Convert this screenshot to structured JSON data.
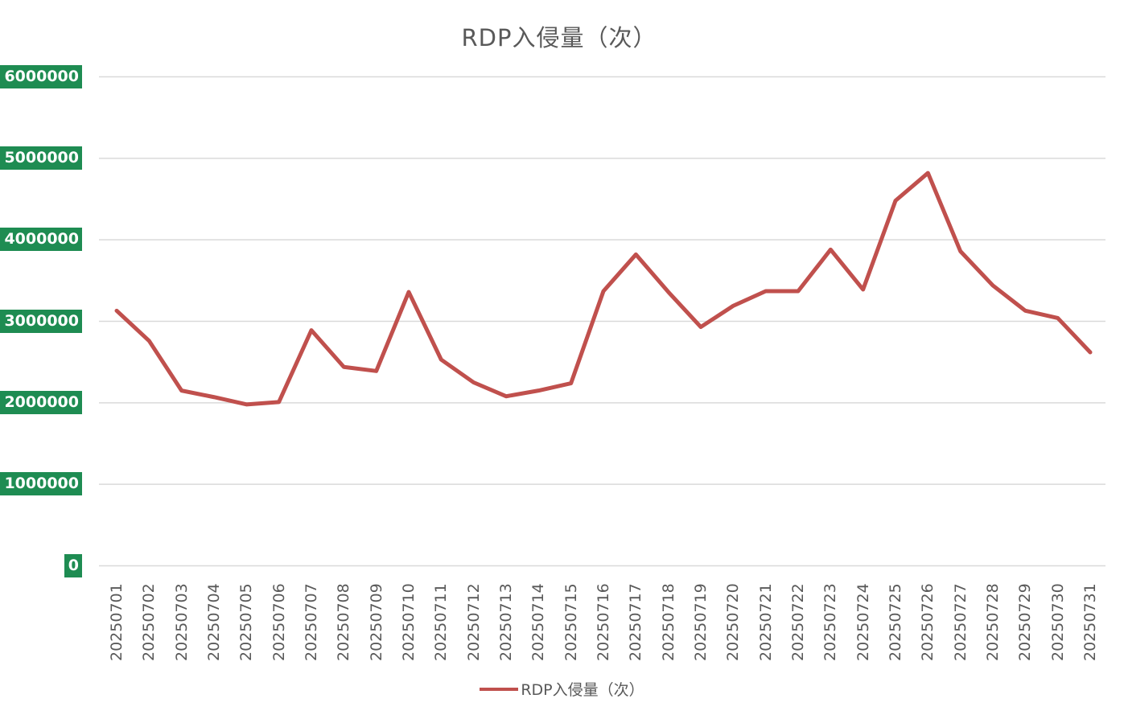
{
  "chart_data": {
    "type": "line",
    "title": "RDP入侵量（次）",
    "categories": [
      "20250701",
      "20250702",
      "20250703",
      "20250704",
      "20250705",
      "20250706",
      "20250707",
      "20250708",
      "20250709",
      "20250710",
      "20250711",
      "20250712",
      "20250713",
      "20250714",
      "20250715",
      "20250716",
      "20250717",
      "20250718",
      "20250719",
      "20250720",
      "20250721",
      "20250722",
      "20250723",
      "20250724",
      "20250725",
      "20250726",
      "20250727",
      "20250728",
      "20250729",
      "20250730",
      "20250731"
    ],
    "series": [
      {
        "name": "RDP入侵量（次）",
        "values": [
          3130000,
          2760000,
          2150000,
          2070000,
          1980000,
          2010000,
          2890000,
          2440000,
          2390000,
          3360000,
          2530000,
          2250000,
          2080000,
          2150000,
          2240000,
          3370000,
          3820000,
          3360000,
          2930000,
          3190000,
          3370000,
          3370000,
          3880000,
          3390000,
          4480000,
          4820000,
          3860000,
          3440000,
          3130000,
          3040000,
          2620000
        ]
      }
    ],
    "xlabel": "",
    "ylabel": "",
    "ylim": [
      0,
      6000000
    ],
    "y_ticks": [
      "6000000",
      "5000000",
      "4000000",
      "3000000",
      "2000000",
      "1000000",
      "0"
    ],
    "grid": "horizontal",
    "legend_position": "bottom",
    "colors": {
      "series": "#C0504D",
      "grid": "#D9D9D9",
      "text": "#595959",
      "y_label_bg": "#1E8C52",
      "y_label_fg": "#FFFFFF"
    }
  }
}
